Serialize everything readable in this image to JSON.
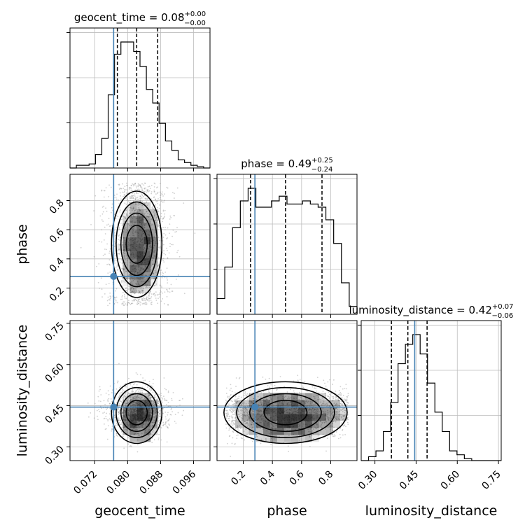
{
  "chart_data": {
    "type": "corner",
    "params": [
      "geocent_time",
      "phase",
      "luminosity_distance"
    ],
    "truths": [
      0.0766,
      0.28,
      0.445
    ],
    "truth_color": "#4682b4",
    "hist_color": "#000000",
    "grid": true,
    "title_math": [
      {
        "text": "geocent_time = 0.08",
        "sup": "+0.00",
        "sub": "−0.00"
      },
      {
        "text": "phase = 0.49",
        "sup": "+0.25",
        "sub": "−0.24"
      },
      {
        "text": "luminosity_distance = 0.42",
        "sup": "+0.07",
        "sub": "−0.06"
      }
    ],
    "xlabels": [
      "geocent_time",
      "phase",
      "luminosity_distance"
    ],
    "ylabels": [
      "phase",
      "luminosity_distance"
    ],
    "ranges": [
      [
        0.066,
        0.1
      ],
      [
        0.02,
        0.98
      ],
      [
        0.25,
        0.76
      ]
    ],
    "ticks": [
      {
        "values": [
          0.072,
          0.08,
          0.088,
          0.096
        ],
        "labels": [
          "0.072",
          "0.080",
          "0.088",
          "0.096"
        ]
      },
      {
        "values": [
          0.2,
          0.4,
          0.6,
          0.8
        ],
        "labels": [
          "0.2",
          "0.4",
          "0.6",
          "0.8"
        ]
      },
      {
        "values": [
          0.3,
          0.45,
          0.6,
          0.75
        ],
        "labels": [
          "0.30",
          "0.45",
          "0.60",
          "0.75"
        ]
      }
    ],
    "quantiles": [
      [
        0.0775,
        0.0822,
        0.0873
      ],
      [
        0.25,
        0.49,
        0.74
      ],
      [
        0.36,
        0.42,
        0.49
      ]
    ],
    "histograms": [
      {
        "edges_range": [
          0.066,
          0.1
        ],
        "counts": [
          0,
          2,
          2,
          3,
          10,
          22,
          54,
          84,
          93,
          93,
          86,
          75,
          58,
          48,
          33,
          20,
          13,
          6,
          4,
          2,
          1,
          0
        ]
      },
      {
        "edges_range": [
          0.02,
          0.98
        ],
        "counts": [
          10,
          30,
          55,
          72,
          80,
          68,
          68,
          72,
          75,
          70,
          70,
          72,
          70,
          68,
          60,
          45,
          20,
          5
        ]
      },
      {
        "edges_range": [
          0.25,
          0.76
        ],
        "counts": [
          0,
          2,
          5,
          15,
          30,
          50,
          60,
          65,
          55,
          40,
          25,
          15,
          5,
          3,
          1,
          0,
          0,
          0,
          0
        ]
      }
    ]
  }
}
